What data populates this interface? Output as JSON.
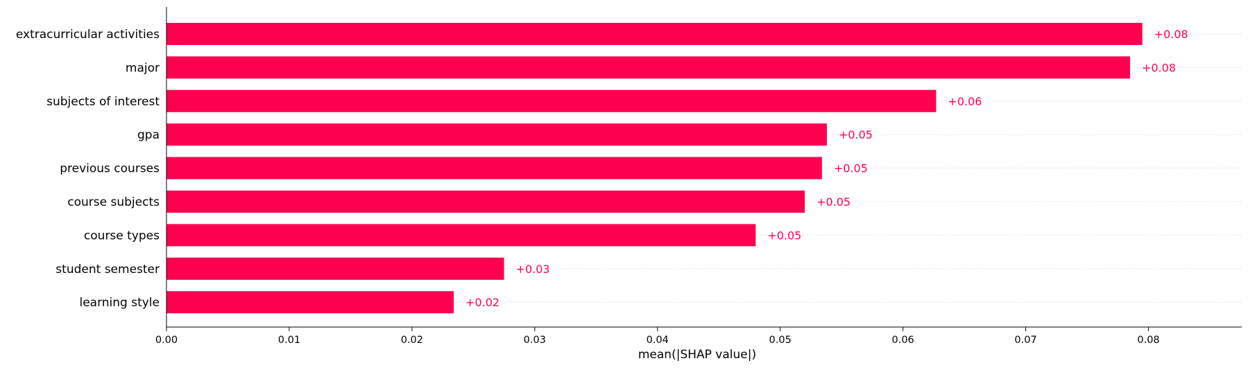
{
  "chart_data": {
    "type": "bar",
    "orientation": "horizontal",
    "categories": [
      "extracurricular activities",
      "major",
      "subjects of interest",
      "gpa",
      "previous courses",
      "course subjects",
      "course types",
      "student semester",
      "learning style"
    ],
    "values": [
      0.0795,
      0.0785,
      0.0627,
      0.0538,
      0.0534,
      0.052,
      0.048,
      0.0275,
      0.0234
    ],
    "value_labels": [
      "+0.08",
      "+0.08",
      "+0.06",
      "+0.05",
      "+0.05",
      "+0.05",
      "+0.05",
      "+0.03",
      "+0.02"
    ],
    "xlabel": "mean(|SHAP value|)",
    "ylabel": "",
    "xlim": [
      0.0,
      0.0876
    ],
    "xticks": [
      0.0,
      0.01,
      0.02,
      0.03,
      0.04,
      0.05,
      0.06,
      0.07,
      0.08
    ],
    "xtick_labels": [
      "0.00",
      "0.01",
      "0.02",
      "0.03",
      "0.04",
      "0.05",
      "0.06",
      "0.07",
      "0.08"
    ],
    "bar_color": "#ff0051",
    "gridlines": "dotted horizontal per bar",
    "legend": "none"
  }
}
